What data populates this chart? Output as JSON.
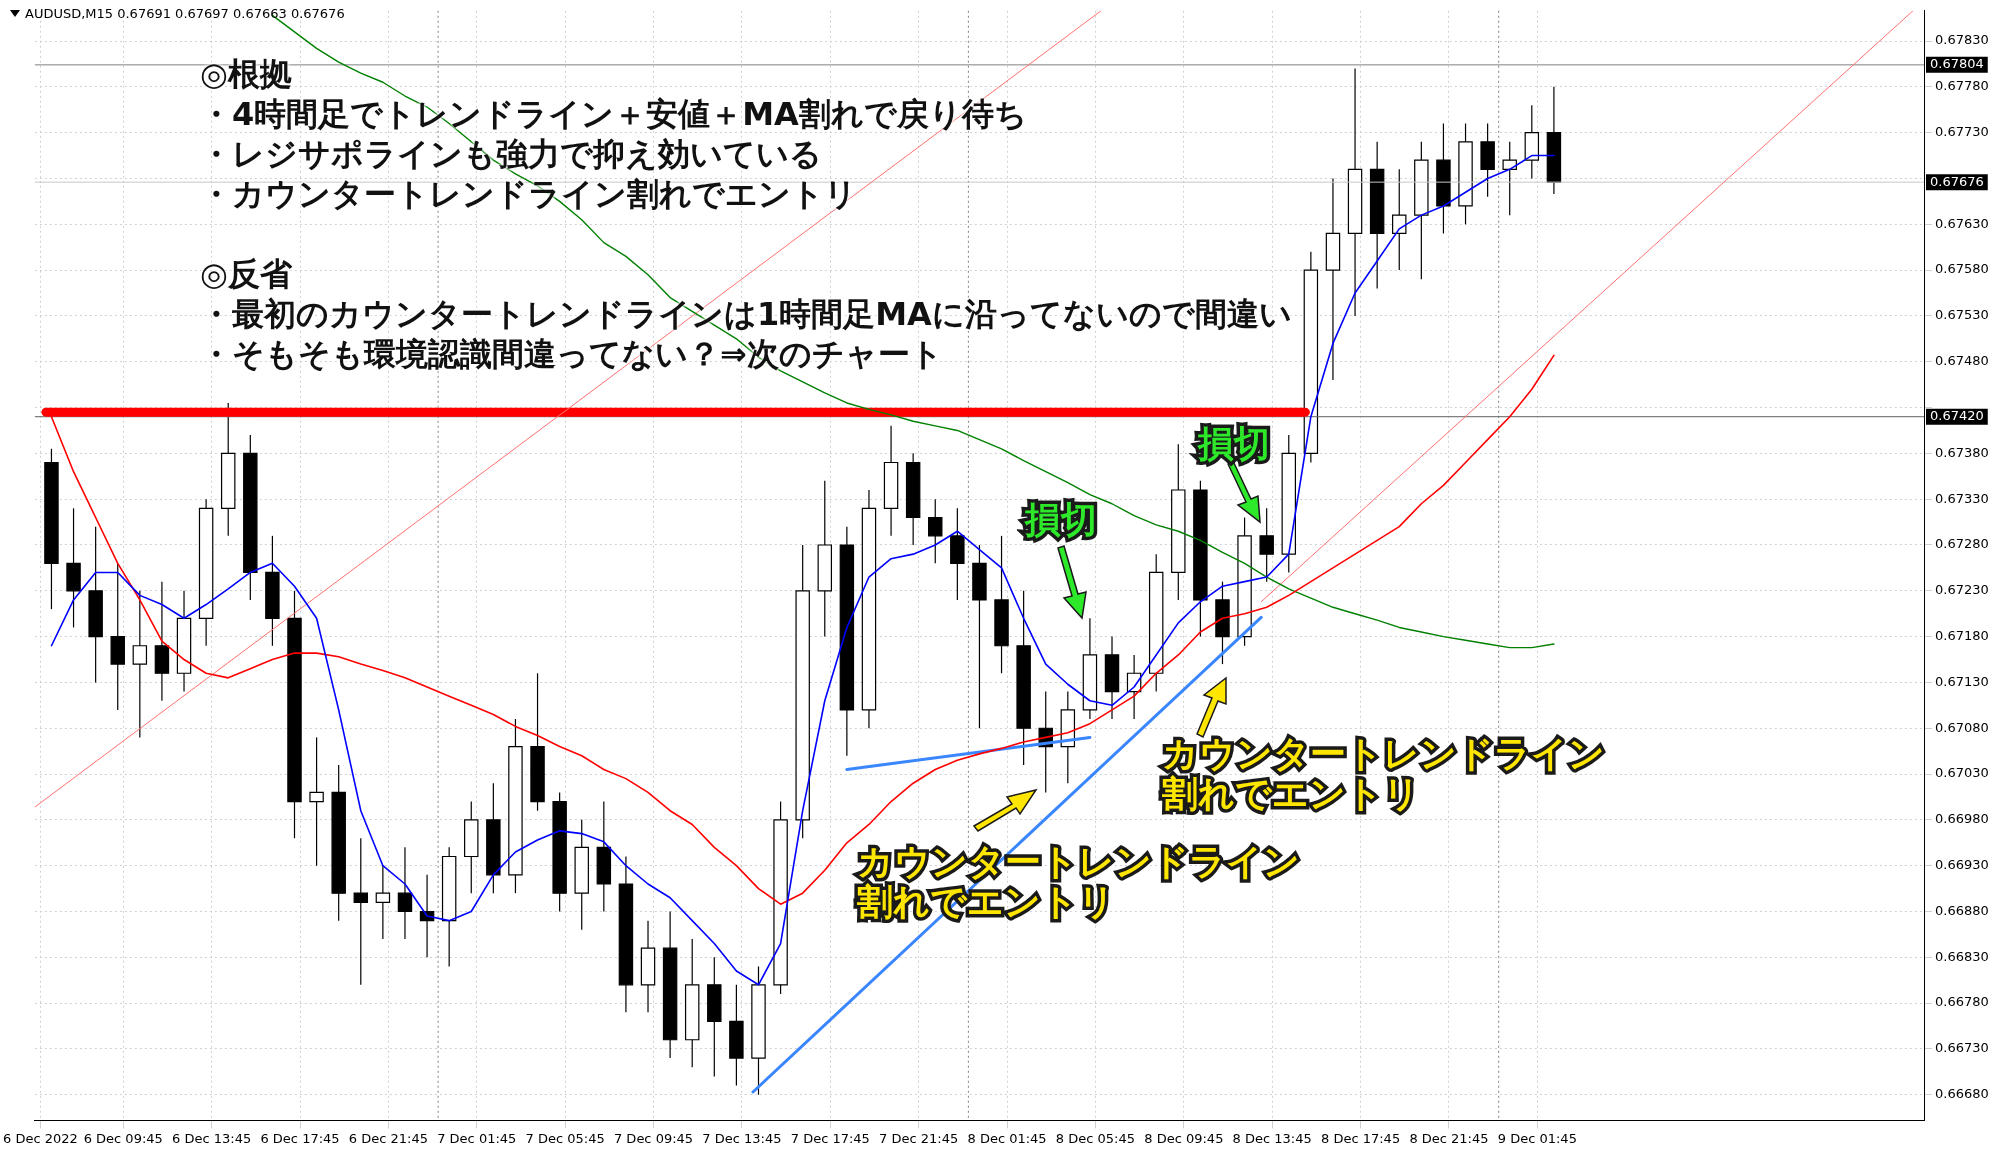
{
  "chart_data": {
    "type": "candlestick",
    "title": "AUDUSD,M15  0.67691 0.67697 0.67663 0.67676",
    "x": [
      "2022-12-06T06:30",
      "2022-12-06T07:30",
      "2022-12-06T08:30",
      "2022-12-06T09:30",
      "2022-12-06T10:30",
      "2022-12-06T11:30",
      "2022-12-06T12:30",
      "2022-12-06T13:30",
      "2022-12-06T14:30",
      "2022-12-06T15:30",
      "2022-12-06T16:30",
      "2022-12-06T17:30",
      "2022-12-06T18:30",
      "2022-12-06T19:30",
      "2022-12-06T20:30",
      "2022-12-06T21:30",
      "2022-12-06T22:30",
      "2022-12-06T23:30",
      "2022-12-07T00:30",
      "2022-12-07T01:30",
      "2022-12-07T02:30",
      "2022-12-07T03:30",
      "2022-12-07T04:30",
      "2022-12-07T05:30",
      "2022-12-07T06:30",
      "2022-12-07T07:30",
      "2022-12-07T08:30",
      "2022-12-07T09:30",
      "2022-12-07T10:30",
      "2022-12-07T11:30",
      "2022-12-07T12:30",
      "2022-12-07T13:30",
      "2022-12-07T14:30",
      "2022-12-07T15:30",
      "2022-12-07T16:30",
      "2022-12-07T17:30",
      "2022-12-07T18:30",
      "2022-12-07T19:30",
      "2022-12-07T20:30",
      "2022-12-07T21:30",
      "2022-12-07T22:30",
      "2022-12-07T23:30",
      "2022-12-08T00:30",
      "2022-12-08T01:30",
      "2022-12-08T02:30",
      "2022-12-08T03:30",
      "2022-12-08T04:30",
      "2022-12-08T05:30",
      "2022-12-08T06:30",
      "2022-12-08T07:30",
      "2022-12-08T08:30",
      "2022-12-08T09:30",
      "2022-12-08T10:30",
      "2022-12-08T11:30",
      "2022-12-08T12:30",
      "2022-12-08T13:30",
      "2022-12-08T14:30",
      "2022-12-08T15:30",
      "2022-12-08T16:30",
      "2022-12-08T17:30",
      "2022-12-08T18:30",
      "2022-12-08T19:30",
      "2022-12-08T20:30",
      "2022-12-08T21:30",
      "2022-12-08T22:30",
      "2022-12-08T23:30",
      "2022-12-09T00:30",
      "2022-12-09T01:30",
      "2022-12-09T02:30"
    ],
    "ohlc": [
      [
        0.6737,
        0.67385,
        0.6721,
        0.6726
      ],
      [
        0.6726,
        0.6732,
        0.6719,
        0.6723
      ],
      [
        0.6723,
        0.673,
        0.6713,
        0.6718
      ],
      [
        0.6718,
        0.6726,
        0.671,
        0.6715
      ],
      [
        0.6715,
        0.6723,
        0.6707,
        0.6717
      ],
      [
        0.6717,
        0.6724,
        0.6711,
        0.6714
      ],
      [
        0.6714,
        0.6723,
        0.6712,
        0.672
      ],
      [
        0.672,
        0.6733,
        0.6717,
        0.6732
      ],
      [
        0.6732,
        0.67435,
        0.6729,
        0.6738
      ],
      [
        0.6738,
        0.674,
        0.6722,
        0.6725
      ],
      [
        0.6725,
        0.6729,
        0.6717,
        0.672
      ],
      [
        0.672,
        0.6723,
        0.6696,
        0.67
      ],
      [
        0.67,
        0.6707,
        0.6693,
        0.6701
      ],
      [
        0.6701,
        0.6704,
        0.6687,
        0.669
      ],
      [
        0.669,
        0.6696,
        0.668,
        0.6689
      ],
      [
        0.6689,
        0.6693,
        0.6685,
        0.669
      ],
      [
        0.669,
        0.6695,
        0.6685,
        0.6688
      ],
      [
        0.6688,
        0.6692,
        0.6683,
        0.6687
      ],
      [
        0.6687,
        0.6695,
        0.6682,
        0.6694
      ],
      [
        0.6694,
        0.67,
        0.669,
        0.6698
      ],
      [
        0.6698,
        0.6702,
        0.669,
        0.6692
      ],
      [
        0.6692,
        0.6709,
        0.669,
        0.6706
      ],
      [
        0.6706,
        0.6714,
        0.6699,
        0.67
      ],
      [
        0.67,
        0.6701,
        0.6688,
        0.669
      ],
      [
        0.669,
        0.6698,
        0.6686,
        0.6695
      ],
      [
        0.6695,
        0.67,
        0.6688,
        0.6691
      ],
      [
        0.6691,
        0.6694,
        0.6677,
        0.668
      ],
      [
        0.668,
        0.6687,
        0.6677,
        0.6684
      ],
      [
        0.6684,
        0.6688,
        0.6672,
        0.6674
      ],
      [
        0.6674,
        0.6685,
        0.6671,
        0.668
      ],
      [
        0.668,
        0.6683,
        0.667,
        0.6676
      ],
      [
        0.6676,
        0.668,
        0.6669,
        0.6672
      ],
      [
        0.6672,
        0.6682,
        0.6668,
        0.668
      ],
      [
        0.668,
        0.67,
        0.6679,
        0.6698
      ],
      [
        0.6698,
        0.6728,
        0.6696,
        0.6723
      ],
      [
        0.6723,
        0.6735,
        0.6718,
        0.6728
      ],
      [
        0.6728,
        0.673,
        0.6705,
        0.671
      ],
      [
        0.671,
        0.6734,
        0.6708,
        0.6732
      ],
      [
        0.6732,
        0.6741,
        0.6729,
        0.6737
      ],
      [
        0.6737,
        0.6738,
        0.6728,
        0.6731
      ],
      [
        0.6731,
        0.6733,
        0.6726,
        0.6729
      ],
      [
        0.6729,
        0.6732,
        0.6722,
        0.6726
      ],
      [
        0.6726,
        0.6728,
        0.6708,
        0.6722
      ],
      [
        0.6722,
        0.6729,
        0.6714,
        0.6717
      ],
      [
        0.6717,
        0.6723,
        0.6704,
        0.6708
      ],
      [
        0.6708,
        0.6712,
        0.6701,
        0.6706
      ],
      [
        0.6706,
        0.6712,
        0.6702,
        0.671
      ],
      [
        0.671,
        0.672,
        0.6709,
        0.6716
      ],
      [
        0.6716,
        0.6718,
        0.6709,
        0.6712
      ],
      [
        0.6712,
        0.6716,
        0.6709,
        0.6714
      ],
      [
        0.6714,
        0.6727,
        0.6712,
        0.6725
      ],
      [
        0.6725,
        0.6739,
        0.6722,
        0.6734
      ],
      [
        0.6734,
        0.6735,
        0.6718,
        0.6722
      ],
      [
        0.6722,
        0.6724,
        0.6715,
        0.6718
      ],
      [
        0.6718,
        0.6731,
        0.6717,
        0.6729
      ],
      [
        0.6729,
        0.6732,
        0.6724,
        0.6727
      ],
      [
        0.6727,
        0.674,
        0.6725,
        0.6738
      ],
      [
        0.6738,
        0.676,
        0.6737,
        0.6758
      ],
      [
        0.6758,
        0.6768,
        0.6746,
        0.6762
      ],
      [
        0.6762,
        0.678,
        0.6753,
        0.6769
      ],
      [
        0.6769,
        0.6772,
        0.6756,
        0.6762
      ],
      [
        0.6762,
        0.6769,
        0.6758,
        0.6764
      ],
      [
        0.6764,
        0.6772,
        0.6757,
        0.677
      ],
      [
        0.677,
        0.6774,
        0.6762,
        0.6765
      ],
      [
        0.6765,
        0.6774,
        0.6763,
        0.6772
      ],
      [
        0.6772,
        0.6774,
        0.6766,
        0.6769
      ],
      [
        0.6769,
        0.6772,
        0.6764,
        0.677
      ],
      [
        0.677,
        0.6776,
        0.6768,
        0.6773
      ],
      [
        0.6773,
        0.6778,
        0.67663,
        0.67676
      ]
    ],
    "series": [
      {
        "type": "line",
        "color": "#0000ff",
        "values": [
          0.6717,
          0.6722,
          0.6725,
          0.6725,
          0.67225,
          0.67215,
          0.672,
          0.67215,
          0.67232,
          0.6725,
          0.6726,
          0.67235,
          0.672,
          0.671,
          0.6699,
          0.6693,
          0.6691,
          0.66875,
          0.6687,
          0.6688,
          0.6692,
          0.66945,
          0.66958,
          0.66968,
          0.66965,
          0.66956,
          0.6693,
          0.6691,
          0.66895,
          0.6687,
          0.66845,
          0.66815,
          0.668,
          0.66845,
          0.6699,
          0.6711,
          0.6719,
          0.67245,
          0.67265,
          0.6727,
          0.6728,
          0.67295,
          0.67275,
          0.67255,
          0.672,
          0.6715,
          0.67128,
          0.6711,
          0.67105,
          0.67125,
          0.6716,
          0.67195,
          0.67218,
          0.67235,
          0.6724,
          0.67245,
          0.6727,
          0.6742,
          0.675,
          0.67555,
          0.6759,
          0.67625,
          0.6764,
          0.6765,
          0.67665,
          0.6768,
          0.6769,
          0.67705,
          0.67705
        ]
      },
      {
        "type": "line",
        "color": "#ff0000",
        "values": [
          0.6742,
          0.6736,
          0.6731,
          0.6726,
          0.6722,
          0.67175,
          0.67155,
          0.6714,
          0.67135,
          0.67145,
          0.67155,
          0.67162,
          0.67162,
          0.67158,
          0.6715,
          0.67143,
          0.67135,
          0.67125,
          0.67115,
          0.67105,
          0.67095,
          0.67082,
          0.67072,
          0.6706,
          0.6705,
          0.67035,
          0.67025,
          0.6701,
          0.6699,
          0.66975,
          0.6695,
          0.6693,
          0.66905,
          0.66888,
          0.669,
          0.66925,
          0.66955,
          0.66975,
          0.67,
          0.6702,
          0.67035,
          0.67045,
          0.67052,
          0.67058,
          0.67065,
          0.6707,
          0.67075,
          0.67085,
          0.671,
          0.67115,
          0.6714,
          0.6716,
          0.67185,
          0.672,
          0.67205,
          0.67212,
          0.67225,
          0.6724,
          0.67255,
          0.6727,
          0.67285,
          0.673,
          0.67325,
          0.67345,
          0.6737,
          0.67395,
          0.6742,
          0.6745,
          0.67487
        ]
      },
      {
        "type": "line",
        "color": "#008000",
        "values": [
          null,
          null,
          null,
          null,
          null,
          null,
          null,
          null,
          null,
          null,
          0.67858,
          0.6784,
          0.67822,
          0.67807,
          0.67795,
          0.67785,
          0.6777,
          0.67758,
          0.6774,
          0.6772,
          0.677,
          0.67685,
          0.67672,
          0.67655,
          0.67635,
          0.6761,
          0.67595,
          0.67575,
          0.6755,
          0.67535,
          0.6752,
          0.67505,
          0.67485,
          0.6747,
          0.67458,
          0.67446,
          0.67435,
          0.67428,
          0.67422,
          0.67415,
          0.6741,
          0.67405,
          0.67395,
          0.67385,
          0.67372,
          0.6736,
          0.67348,
          0.67335,
          0.67325,
          0.67312,
          0.67302,
          0.67295,
          0.67285,
          0.67272,
          0.6726,
          0.67245,
          0.67232,
          0.67222,
          0.67212,
          0.67205,
          0.67198,
          0.6719,
          0.67185,
          0.6718,
          0.67176,
          0.67172,
          0.67168,
          0.67168,
          0.67172
        ]
      },
      {
        "type": "line",
        "color": "#3a86ff",
        "x": [
          "2022-12-07T14:15",
          "2022-12-08T13:15"
        ],
        "values": [
          0.66683,
          0.67201
        ]
      },
      {
        "type": "line",
        "color": "#3a86ff",
        "x": [
          "2022-12-07T18:30",
          "2022-12-08T05:30"
        ],
        "values": [
          0.67035,
          0.6707
        ]
      },
      {
        "type": "line",
        "color": "#ff7070",
        "x": [
          "2022-12-06T05:45",
          "2022-12-08T06:00"
        ],
        "values": [
          0.66994,
          0.67863
        ]
      },
      {
        "type": "line",
        "color": "#ff7070",
        "x": [
          "2022-12-08T13:15",
          "2022-12-09T18:45"
        ],
        "values": [
          0.67218,
          0.67863
        ]
      },
      {
        "type": "line",
        "color": "#ff0000",
        "x": [
          "2022-12-06T06:15",
          "2022-12-08T15:15"
        ],
        "values": [
          0.67425,
          0.67425
        ]
      }
    ],
    "xlim": [
      "2022-12-06T05:45",
      "2022-12-09T19:15"
    ],
    "ylim": [
      0.66652,
      0.67863
    ],
    "xticks": [
      {
        "value": "2022-12-06T06:00",
        "label": "6 Dec 2022"
      },
      {
        "value": "2022-12-06T09:45",
        "label": "6 Dec 09:45"
      },
      {
        "value": "2022-12-06T13:45",
        "label": "6 Dec 13:45"
      },
      {
        "value": "2022-12-06T17:45",
        "label": "6 Dec 17:45"
      },
      {
        "value": "2022-12-06T21:45",
        "label": "6 Dec 21:45"
      },
      {
        "value": "2022-12-07T01:45",
        "label": "7 Dec 01:45"
      },
      {
        "value": "2022-12-07T05:45",
        "label": "7 Dec 05:45"
      },
      {
        "value": "2022-12-07T09:45",
        "label": "7 Dec 09:45"
      },
      {
        "value": "2022-12-07T13:45",
        "label": "7 Dec 13:45"
      },
      {
        "value": "2022-12-07T17:45",
        "label": "7 Dec 17:45"
      },
      {
        "value": "2022-12-07T21:45",
        "label": "7 Dec 21:45"
      },
      {
        "value": "2022-12-08T01:45",
        "label": "8 Dec 01:45"
      },
      {
        "value": "2022-12-08T05:45",
        "label": "8 Dec 05:45"
      },
      {
        "value": "2022-12-08T09:45",
        "label": "8 Dec 09:45"
      },
      {
        "value": "2022-12-08T13:45",
        "label": "8 Dec 13:45"
      },
      {
        "value": "2022-12-08T17:45",
        "label": "8 Dec 17:45"
      },
      {
        "value": "2022-12-08T21:45",
        "label": "8 Dec 21:45"
      },
      {
        "value": "2022-12-09T01:45",
        "label": "9 Dec 01:45"
      }
    ],
    "yticks": [
      {
        "value": 0.6668,
        "label": "0.66680"
      },
      {
        "value": 0.6673,
        "label": "0.66730"
      },
      {
        "value": 0.6678,
        "label": "0.66780"
      },
      {
        "value": 0.6683,
        "label": "0.66830"
      },
      {
        "value": 0.6688,
        "label": "0.66880"
      },
      {
        "value": 0.6693,
        "label": "0.66930"
      },
      {
        "value": 0.6698,
        "label": "0.66980"
      },
      {
        "value": 0.6703,
        "label": "0.67030"
      },
      {
        "value": 0.6708,
        "label": "0.67080"
      },
      {
        "value": 0.6713,
        "label": "0.67130"
      },
      {
        "value": 0.6718,
        "label": "0.67180"
      },
      {
        "value": 0.6723,
        "label": "0.67230"
      },
      {
        "value": 0.6728,
        "label": "0.67280"
      },
      {
        "value": 0.6733,
        "label": "0.67330"
      },
      {
        "value": 0.6738,
        "label": "0.67380"
      },
      {
        "value": 0.6743,
        "label": null
      },
      {
        "value": 0.6748,
        "label": "0.67480"
      },
      {
        "value": 0.6753,
        "label": "0.67530"
      },
      {
        "value": 0.6758,
        "label": "0.67580"
      },
      {
        "value": 0.6763,
        "label": "0.67630"
      },
      {
        "value": 0.6768,
        "label": null
      },
      {
        "value": 0.6773,
        "label": "0.67730"
      },
      {
        "value": 0.6778,
        "label": "0.67780"
      },
      {
        "value": 0.6783,
        "label": "0.67830"
      }
    ],
    "grid": true,
    "ref_lines": [
      {
        "axis": "x",
        "value": "2022-12-07T00:00",
        "label": null,
        "color": "#808080",
        "line_style": "dotted"
      },
      {
        "axis": "x",
        "value": "2022-12-08T00:00",
        "label": null,
        "color": "#808080",
        "line_style": "dotted"
      },
      {
        "axis": "x",
        "value": "2022-12-09T00:00",
        "label": null,
        "color": "#808080",
        "line_style": "dotted"
      },
      {
        "axis": "y",
        "value": 0.67804,
        "label": "0.67804",
        "color": "#808080",
        "line_style": "solid"
      },
      {
        "axis": "y",
        "value": 0.67676,
        "label": "0.67676",
        "color": "#c8c8c8",
        "line_style": "solid"
      },
      {
        "axis": "y",
        "value": 0.6742,
        "label": "0.67420",
        "color": "#606060",
        "line_style": "solid"
      }
    ],
    "annotations": [
      "◎根拠",
      "・4時間足でトレンドライン＋安値＋MA割れで戻り待ち",
      "・レジサポラインも強力で抑え効いている",
      "・カウンタートレンドライン割れでエントリ",
      "◎反省",
      "・最初のカウンタートレンドラインは1時間足MAに沿ってないので間違い",
      "・そもそも環境認識間違ってない？⇒次のチャート",
      "損切",
      "損切",
      "カウンタートレンドライン",
      "割れでエントリ",
      "カウンタートレンドライン",
      "割れでエントリ"
    ]
  }
}
